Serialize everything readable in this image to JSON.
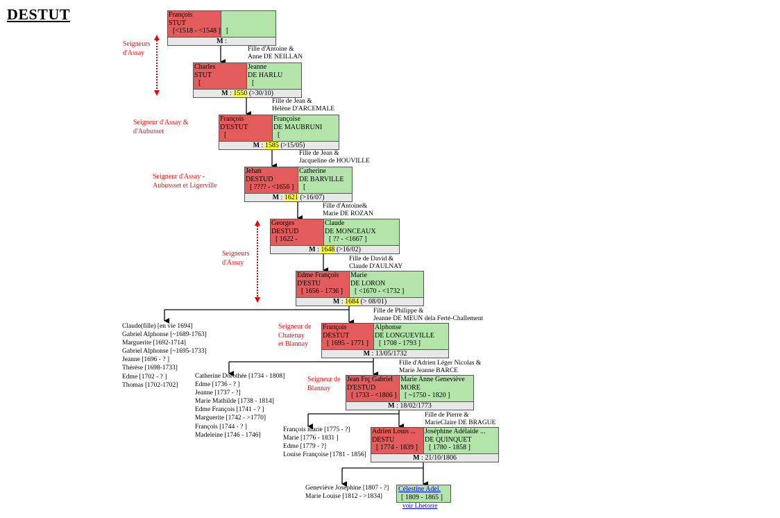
{
  "title": "DESTUT",
  "couples": [
    {
      "husband": {
        "first": "François",
        "last": "STUT",
        "dates": "[<1518 - <1548 ]"
      },
      "wife": {
        "dates": "["
      },
      "marriage": {
        "label": "M",
        "colon": ":"
      }
    },
    {
      "husband": {
        "first": "Charles",
        "last": "STUT",
        "dates": "["
      },
      "wife": {
        "first": "Jeanne",
        "last": "DE HARLU",
        "dates": "["
      },
      "parents": [
        "Fille d'Antoine &",
        "Anne DE NEILLAN"
      ],
      "marriage": {
        "label": "M",
        "colon": ":",
        "year": "1550",
        "detail": "(>30/10)"
      }
    },
    {
      "husband": {
        "first": "François",
        "last": "D'ESTUT",
        "dates": "["
      },
      "wife": {
        "first": "Françoise",
        "last": "DE MAUBRUNI",
        "dates": "["
      },
      "parents": [
        "Fille de Jean &",
        "Hélène D'ARCEMALE"
      ],
      "marriage": {
        "label": "M",
        "colon": ":",
        "year": "1585",
        "detail": "(>15/05)"
      }
    },
    {
      "husband": {
        "first": "Jehan",
        "last": "DESTUD",
        "dates": "[ ???? - <1656 ]"
      },
      "wife": {
        "first": "Catherine",
        "last": "DE BARVILLE",
        "dates": "["
      },
      "parents": [
        "Fille de Jean &",
        "Jacqueline de HOUVILLE"
      ],
      "marriage": {
        "label": "M",
        "colon": ":",
        "year": "1621",
        "detail": "(>16/07)"
      }
    },
    {
      "husband": {
        "first": "Georges",
        "last": "DESTUD",
        "dates": "[ 1622 -"
      },
      "wife": {
        "first": "Claude",
        "last": "DE MONCEAUX",
        "dates": "[ ?? - <1667 ]"
      },
      "parents": [
        "Fille d'Antoine&",
        "Marie DE ROZAN"
      ],
      "marriage": {
        "label": "M",
        "colon": ":",
        "year": "1648",
        "detail": "(>16/02)"
      }
    },
    {
      "husband": {
        "first": "Edme François",
        "last": "D'ESTU",
        "dates": "[ 1656 - 1736 ]"
      },
      "wife": {
        "first": "Marie",
        "last": "DE LORON",
        "dates": "[ <1670 - <1732 ]"
      },
      "parents": [
        "Fille de David &",
        "Claude D'AULNAY"
      ],
      "marriage": {
        "label": "M",
        "colon": ":",
        "year": "1684",
        "detail": "(> 08/01)"
      }
    },
    {
      "husband": {
        "first": "François",
        "last": "DESTUT",
        "dates": "[ 1695 - 1771 ]"
      },
      "wife": {
        "first": "Alphonse",
        "last": "DE LONGUEVILLE",
        "dates": "[ 1708 - 1793 ]"
      },
      "parents": [
        "Fille de Philippe &",
        "Jeanne DE MEUN dela Ferté-Challement"
      ],
      "marriage": {
        "label": "M",
        "colon": ":",
        "detail": "13/05/1732"
      }
    },
    {
      "husband": {
        "first": "Jean Frç Gabriel",
        "last": "D'ESTUD",
        "dates": "[ 1733 - <1806 ]"
      },
      "wife": {
        "first": "Marie Anne Geneviève",
        "last": "MORE",
        "dates": "[ ~1750 - 1820 ]"
      },
      "parents": [
        "Fille d'Adrien Léger Nicolas &",
        "Marie Jeanne BARCE"
      ],
      "marriage": {
        "label": "M",
        "colon": ":",
        "detail": "18/02/1773"
      }
    },
    {
      "husband": {
        "first": "Adrien Louis ...",
        "last": "DESTU",
        "dates": "[ 1774 - 1839 ]"
      },
      "wife": {
        "first": "Joséphine Adélaide ...",
        "last": "DE QUINQUET",
        "dates": "[ 1780 - 1858 ]"
      },
      "parents": [
        "Fille de Pierre &",
        "MarieClaire DE BRAGUE"
      ],
      "marriage": {
        "label": "M",
        "colon": ":",
        "detail": "21/10/1806"
      }
    }
  ],
  "titles": [
    [
      "Seigneurs",
      "d'Assay"
    ],
    [
      "Seigneur d'Assay &",
      "d'Aubusset"
    ],
    [
      "Seigneur d'Assay -",
      "Aubussset et Ligerville"
    ],
    [
      "Seigneurs",
      "d'Assay"
    ],
    [
      "Seigneur de",
      "Chatenay",
      "et Blannay"
    ],
    [
      "Seigneur de",
      "Blannay"
    ]
  ],
  "siblings": [
    [
      "Claude(fille) [en vie 1694]",
      "Gabriel Alphonse [~1689-1763]",
      "Marguerite [1692-1714]",
      "Gabriel Alphonse [~1695-1733]",
      "Jeanne [1696 - ? ]",
      "Thérèse [1698-1733]",
      "Edme [1702 - ? ]",
      "Thomas [1702-1702]"
    ],
    [
      "Catherine Dorothée [1734 - 1808]",
      "Edme [1736 - ? ]",
      "Jeanne [1737 - ?]",
      "Marie Mathilde [1738 - 1814]",
      "Edme François [1741 - ? ]",
      "Marguerite [1742 - >1770]",
      "François [1744 - ? ]",
      "Madeleine [1746 - 1746]"
    ],
    [
      "François marie [1775 - ?]",
      "Marie [1776 - 1831 ]",
      "Edme [1779 - ?]",
      "Louise Françoise [1781 - 1856]"
    ],
    [
      "Geneviève Joséphine [1807 - ?]",
      "Marie Louise [1812 - >1834]"
    ]
  ],
  "last_child": {
    "name": "Célestine Adel.",
    "dates": "[ 1809 - 1865 ]",
    "link": "voir Lhetorre"
  }
}
